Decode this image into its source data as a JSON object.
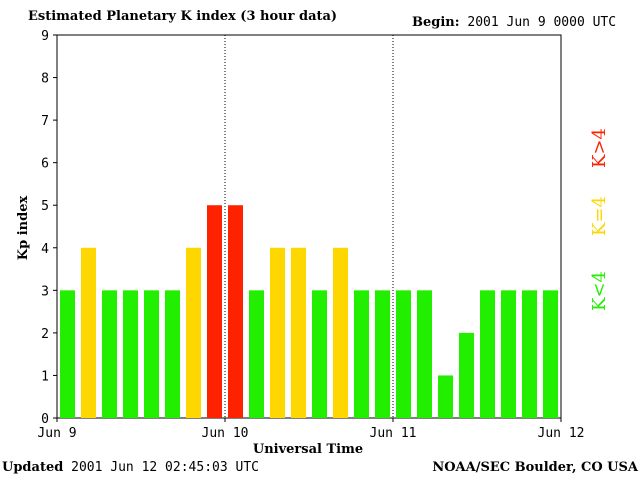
{
  "header": {
    "title": "Estimated Planetary K index (3 hour data)",
    "begin_label": "Begin:",
    "begin_value": "2001 Jun 9 0000 UTC"
  },
  "footer": {
    "updated_label": "Updated",
    "updated_value": "2001 Jun 12 02:45:03 UTC",
    "credit": "NOAA/SEC Boulder, CO USA"
  },
  "legend": {
    "green": "K<4",
    "yellow": "K=4",
    "red": "K>4"
  },
  "colors": {
    "green": "#22ee00",
    "yellow": "#ffd700",
    "red": "#ff2200",
    "grid_line": "#000000"
  },
  "chart_data": {
    "type": "bar",
    "title": "Estimated Planetary K index (3 hour data)",
    "xlabel": "Universal Time",
    "ylabel": "Kp index",
    "ylim": [
      0,
      9
    ],
    "yticks": [
      0,
      1,
      2,
      3,
      4,
      5,
      6,
      7,
      8,
      9
    ],
    "xtick_labels": [
      "Jun 9",
      "Jun 10",
      "Jun 11",
      "Jun 12"
    ],
    "day_dividers_at_index": [
      8,
      16
    ],
    "values": [
      3,
      4,
      3,
      3,
      3,
      3,
      4,
      5,
      5,
      3,
      4,
      4,
      3,
      4,
      3,
      3,
      3,
      3,
      1,
      2,
      3,
      3,
      3,
      3
    ],
    "colors": [
      "green",
      "yellow",
      "green",
      "green",
      "green",
      "green",
      "yellow",
      "red",
      "red",
      "green",
      "yellow",
      "yellow",
      "green",
      "yellow",
      "green",
      "green",
      "green",
      "green",
      "green",
      "green",
      "green",
      "green",
      "green",
      "green"
    ]
  }
}
